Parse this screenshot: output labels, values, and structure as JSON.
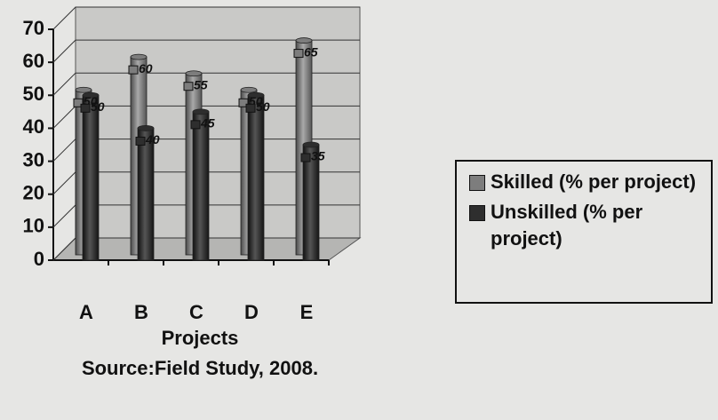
{
  "chart_data": {
    "type": "bar",
    "x_label": "Projects",
    "caption": "Source:Field Study, 2008.",
    "categories": [
      "A",
      "B",
      "C",
      "D",
      "E"
    ],
    "series": [
      {
        "name": "Skilled (% per project)",
        "color": "#7d7d7d",
        "values": [
          50,
          60,
          55,
          50,
          65
        ]
      },
      {
        "name": "Unskilled (% per project)",
        "color": "#2e2e2e",
        "values": [
          50,
          40,
          45,
          50,
          35
        ]
      }
    ],
    "ylim": [
      0,
      70
    ],
    "yticks": [
      0,
      10,
      20,
      30,
      40,
      50,
      60,
      70
    ],
    "grid": true,
    "legend": "right"
  }
}
